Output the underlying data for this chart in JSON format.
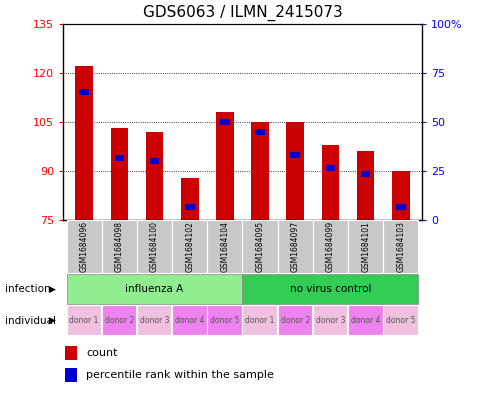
{
  "title": "GDS6063 / ILMN_2415073",
  "samples": [
    "GSM1684096",
    "GSM1684098",
    "GSM1684100",
    "GSM1684102",
    "GSM1684104",
    "GSM1684095",
    "GSM1684097",
    "GSM1684099",
    "GSM1684101",
    "GSM1684103"
  ],
  "bar_heights": [
    122,
    103,
    102,
    88,
    108,
    105,
    105,
    98,
    96,
    90
  ],
  "blue_markers": [
    114,
    94,
    93,
    79,
    105,
    102,
    95,
    91,
    89,
    79
  ],
  "ylim": [
    75,
    135
  ],
  "yticks_left": [
    75,
    90,
    105,
    120,
    135
  ],
  "yticks_right": [
    0,
    25,
    50,
    75,
    100
  ],
  "bar_color": "#cc0000",
  "blue_color": "#0000cc",
  "bar_width": 0.5,
  "infection_groups": [
    {
      "label": "influenza A",
      "start": 0,
      "end": 5,
      "color": "#90ee90"
    },
    {
      "label": "no virus control",
      "start": 5,
      "end": 10,
      "color": "#33cc55"
    }
  ],
  "individual_labels": [
    "donor 1",
    "donor 2",
    "donor 3",
    "donor 4",
    "donor 5",
    "donor 1",
    "donor 2",
    "donor 3",
    "donor 4",
    "donor 5"
  ],
  "individual_colors": [
    "#f0c0e0",
    "#ee82ee",
    "#f0c0e0",
    "#ee82ee",
    "#ee82ee",
    "#f0c0e0",
    "#ee82ee",
    "#f0c0e0",
    "#ee82ee",
    "#f0c0e0"
  ],
  "infection_label": "infection",
  "individual_label": "individual",
  "legend_count": "count",
  "legend_percentile": "percentile rank within the sample",
  "title_fontsize": 11,
  "tick_fontsize": 8,
  "label_fontsize": 8
}
